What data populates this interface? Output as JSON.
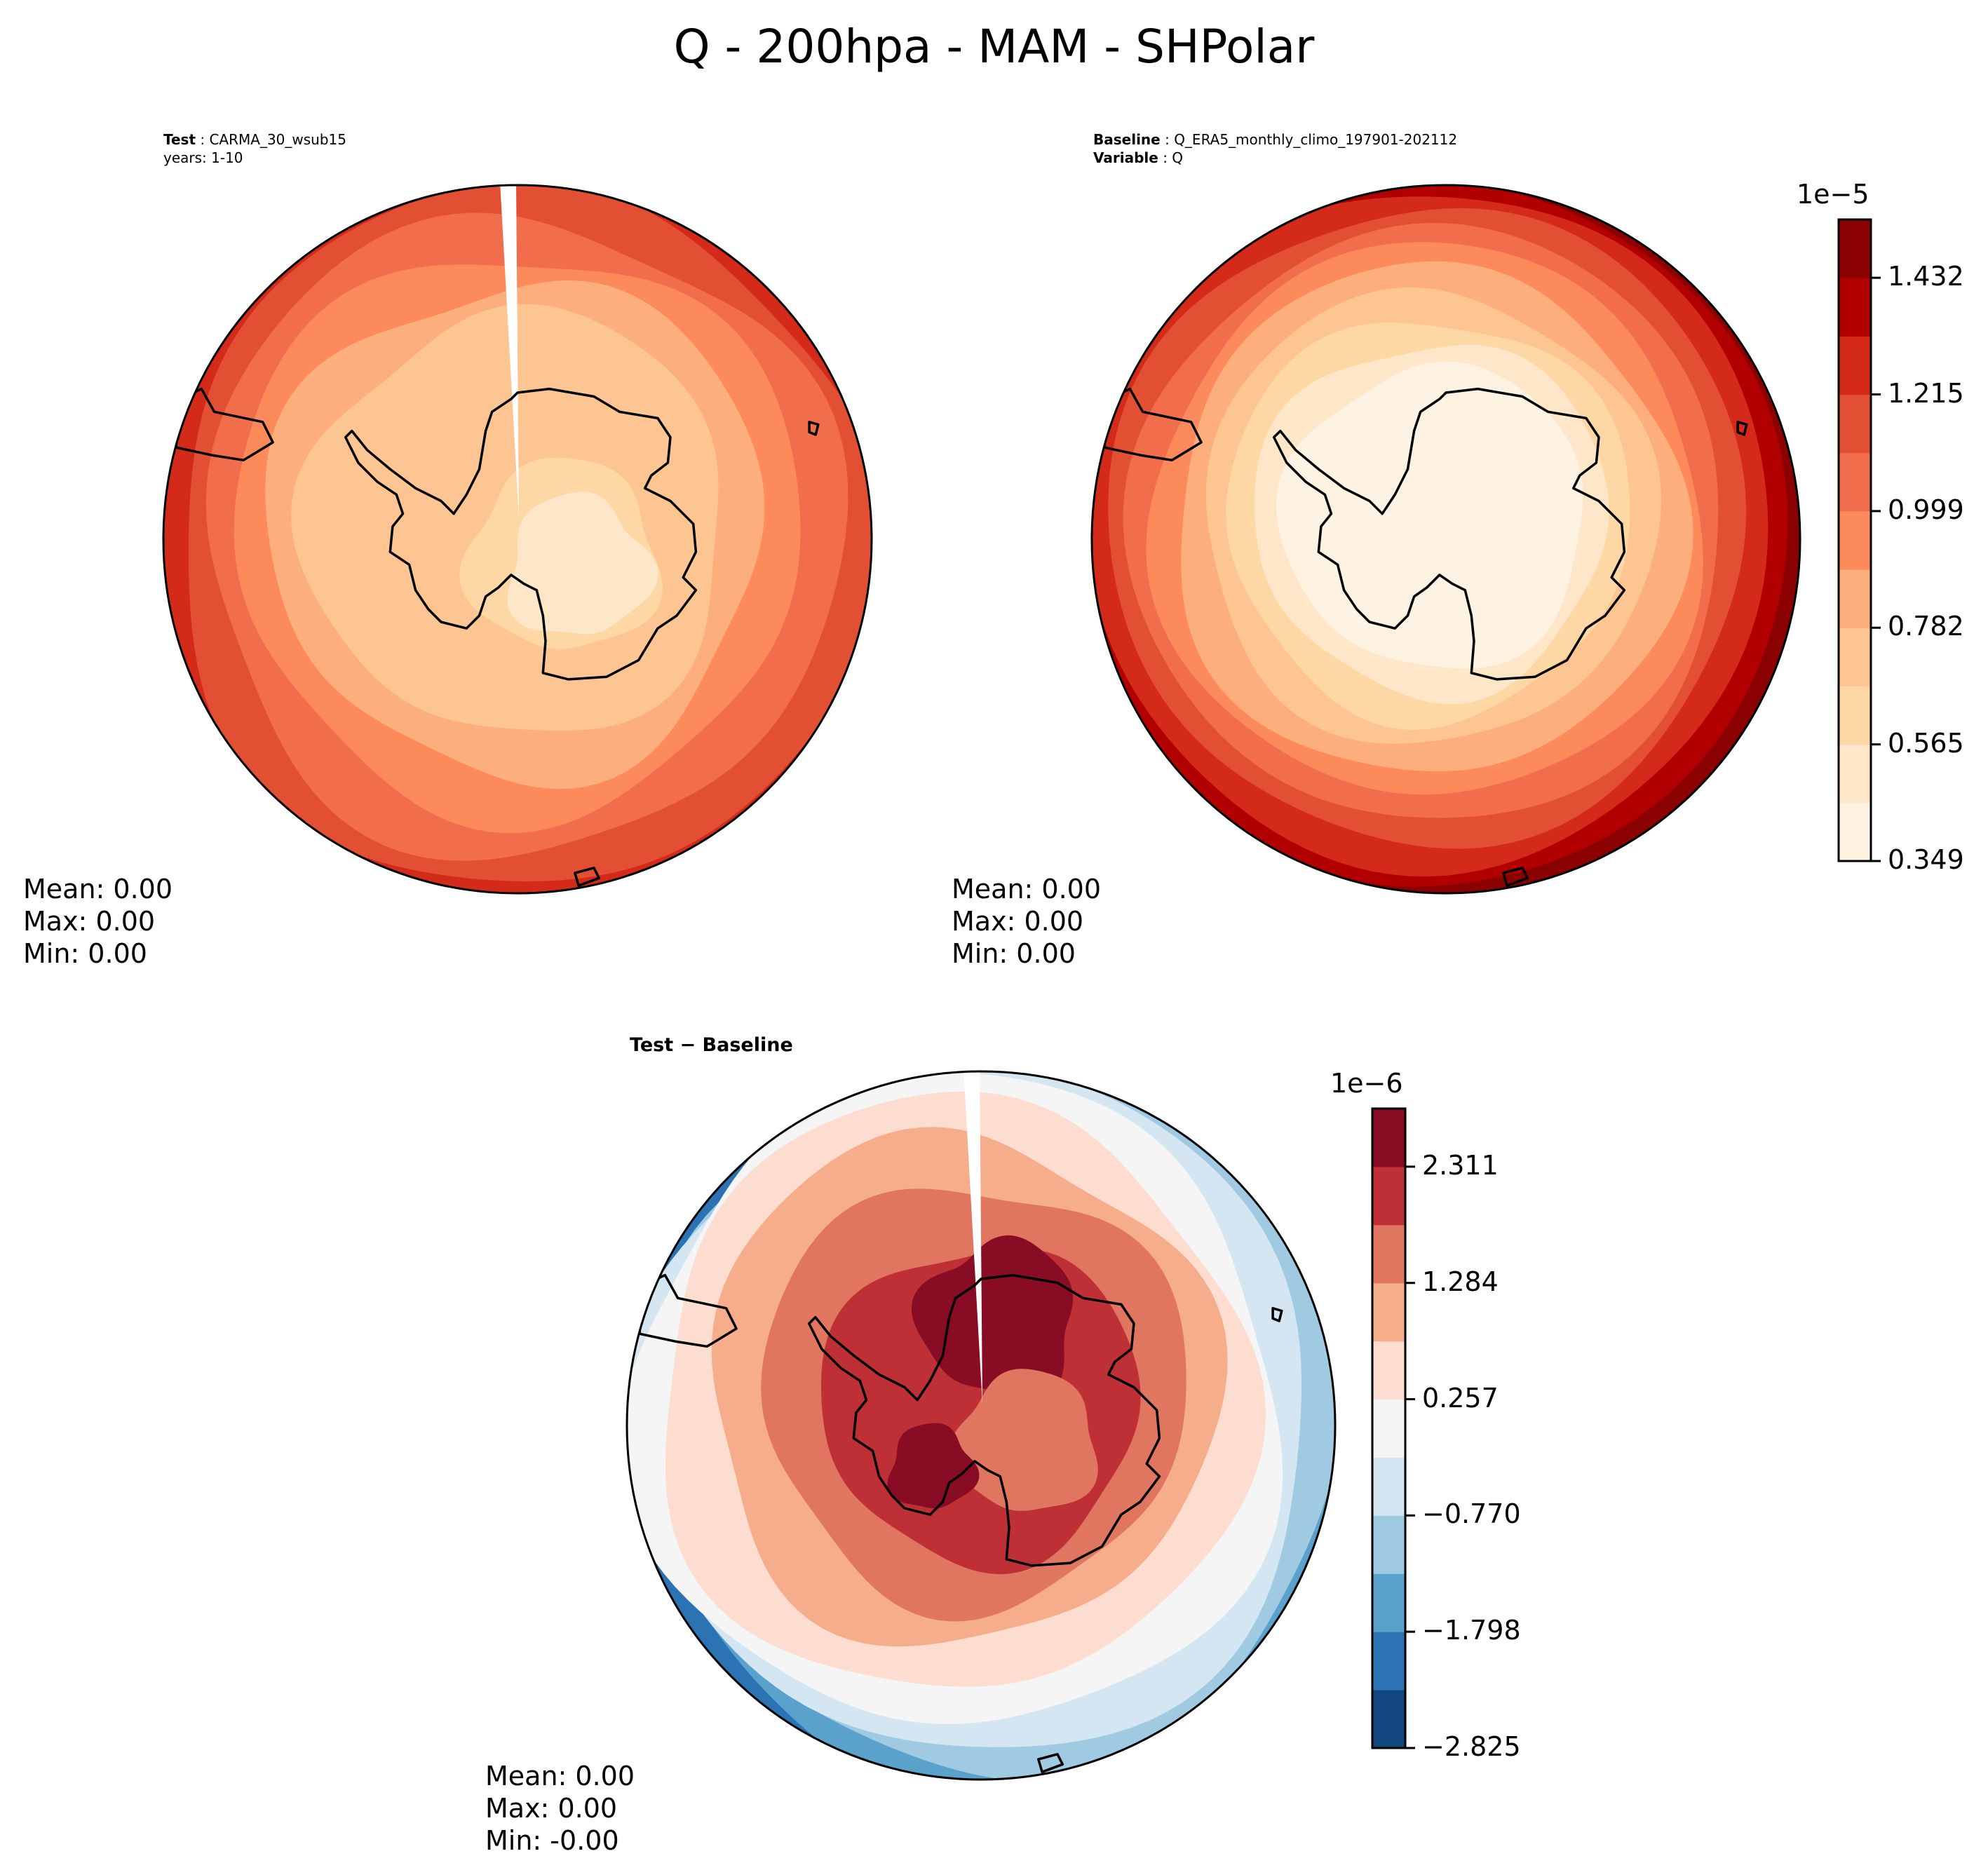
{
  "title": "Q - 200hpa - MAM - SHPolar",
  "panels": [
    {
      "meta_bold": "Test",
      "meta_value": "CARMA_30_wsub15",
      "meta_line2": "years: 1-10",
      "stats": {
        "mean": "Mean:  0.00",
        "max": "Max:  0.00",
        "min": "Min:  0.00"
      }
    },
    {
      "meta_bold": "Baseline",
      "meta_value": "Q_ERA5_monthly_climo_197901-202112",
      "meta_line2_bold": "Variable",
      "meta_line2_value": "Q",
      "stats": {
        "mean": "Mean:  0.00",
        "max": "Max:  0.00",
        "min": "Min:  0.00"
      }
    },
    {
      "meta_bold": "Test − Baseline",
      "stats": {
        "mean": "Mean:  0.00",
        "max": "Max:  0.00",
        "min": "Min: -0.00"
      }
    }
  ],
  "chart_data": [
    {
      "type": "heatmap",
      "projection": "south-polar-stereographic",
      "panel": "Test",
      "colorbar": "shared with Baseline"
    },
    {
      "type": "heatmap",
      "projection": "south-polar-stereographic",
      "panel": "Baseline",
      "colorbar": {
        "multiplier": "1e−5",
        "ticks": [
          "0.349",
          "0.565",
          "0.782",
          "0.999",
          "1.215",
          "1.432"
        ],
        "range": [
          0.349,
          1.54
        ],
        "colors": [
          "#fef2e2",
          "#fee6c8",
          "#fdd8a5",
          "#fdc591",
          "#fcae7c",
          "#fc8a5a",
          "#f16d4b",
          "#e34f33",
          "#d42a1a",
          "#b20000",
          "#8b0000"
        ]
      }
    },
    {
      "type": "heatmap",
      "projection": "south-polar-stereographic",
      "panel": "Test - Baseline",
      "colorbar": {
        "multiplier": "1e−6",
        "ticks": [
          "−2.825",
          "−1.798",
          "−0.770",
          "0.257",
          "1.284",
          "2.311"
        ],
        "range": [
          -2.825,
          2.825
        ],
        "colors": [
          "#11467f",
          "#2b73b2",
          "#5aa1cb",
          "#9fcae1",
          "#d4e6f1",
          "#f5f5f5",
          "#fcddcf",
          "#f5ad8c",
          "#e07660",
          "#bf2f36",
          "#870c24"
        ]
      }
    }
  ]
}
